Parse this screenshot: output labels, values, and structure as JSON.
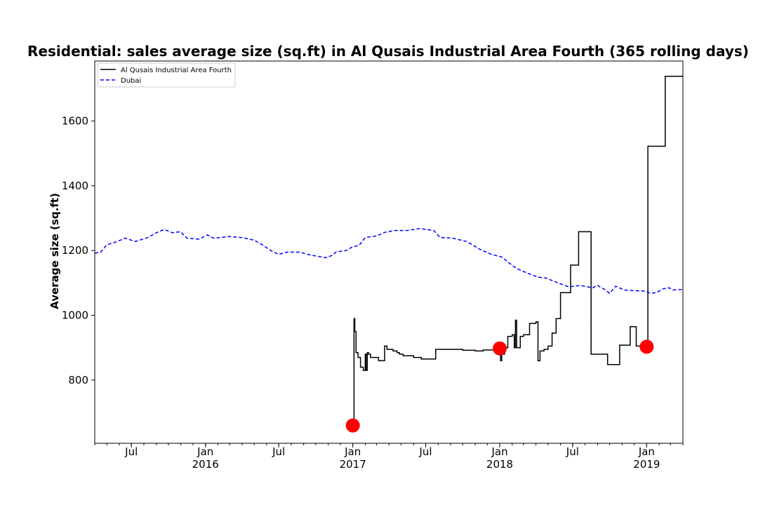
{
  "chart_data": {
    "type": "line",
    "title": "Residential: sales average size (sq.ft) in Al Qusais Industrial Area Fourth (365 rolling days)",
    "ylabel": "Average size (sq.ft)",
    "xlabel": "",
    "xlim": [
      "2015-04-01",
      "2019-04-01"
    ],
    "ylim": [
      605,
      1785
    ],
    "grid": false,
    "legend_position": "top-left",
    "x_ticks": [
      {
        "date": "2015-07-01",
        "label": "Jul",
        "year": ""
      },
      {
        "date": "2016-01-01",
        "label": "Jan",
        "year": "2016"
      },
      {
        "date": "2016-07-01",
        "label": "Jul",
        "year": ""
      },
      {
        "date": "2017-01-01",
        "label": "Jan",
        "year": "2017"
      },
      {
        "date": "2017-07-01",
        "label": "Jul",
        "year": ""
      },
      {
        "date": "2018-01-01",
        "label": "Jan",
        "year": "2018"
      },
      {
        "date": "2018-07-01",
        "label": "Jul",
        "year": ""
      },
      {
        "date": "2019-01-01",
        "label": "Jan",
        "year": "2019"
      }
    ],
    "y_ticks": [
      800,
      1000,
      1200,
      1400,
      1600
    ],
    "series": [
      {
        "name": "Al Qusais Industrial Area Fourth",
        "color": "#000000",
        "style": "solid",
        "step": true,
        "points": [
          [
            "2017-01-01",
            660
          ],
          [
            "2017-01-04",
            990
          ],
          [
            "2017-01-06",
            950
          ],
          [
            "2017-01-09",
            885
          ],
          [
            "2017-01-14",
            870
          ],
          [
            "2017-01-20",
            840
          ],
          [
            "2017-01-27",
            830
          ],
          [
            "2017-02-01",
            880
          ],
          [
            "2017-02-03",
            830
          ],
          [
            "2017-02-06",
            885
          ],
          [
            "2017-02-09",
            880
          ],
          [
            "2017-02-14",
            870
          ],
          [
            "2017-03-06",
            860
          ],
          [
            "2017-03-21",
            905
          ],
          [
            "2017-03-27",
            895
          ],
          [
            "2017-04-11",
            890
          ],
          [
            "2017-04-21",
            885
          ],
          [
            "2017-04-27",
            880
          ],
          [
            "2017-05-06",
            875
          ],
          [
            "2017-06-01",
            870
          ],
          [
            "2017-06-20",
            865
          ],
          [
            "2017-07-26",
            895
          ],
          [
            "2017-10-01",
            892
          ],
          [
            "2017-11-01",
            890
          ],
          [
            "2017-11-21",
            893
          ],
          [
            "2017-12-27",
            895
          ],
          [
            "2018-01-03",
            860
          ],
          [
            "2018-01-06",
            880
          ],
          [
            "2018-01-13",
            900
          ],
          [
            "2018-01-21",
            935
          ],
          [
            "2018-02-01",
            940
          ],
          [
            "2018-02-06",
            900
          ],
          [
            "2018-02-09",
            985
          ],
          [
            "2018-02-12",
            900
          ],
          [
            "2018-02-21",
            935
          ],
          [
            "2018-03-01",
            940
          ],
          [
            "2018-03-16",
            975
          ],
          [
            "2018-04-01",
            980
          ],
          [
            "2018-04-06",
            860
          ],
          [
            "2018-04-11",
            890
          ],
          [
            "2018-04-21",
            895
          ],
          [
            "2018-05-01",
            905
          ],
          [
            "2018-05-11",
            945
          ],
          [
            "2018-05-21",
            990
          ],
          [
            "2018-06-01",
            1070
          ],
          [
            "2018-06-26",
            1155
          ],
          [
            "2018-07-16",
            1258
          ],
          [
            "2018-08-16",
            880
          ],
          [
            "2018-09-26",
            848
          ],
          [
            "2018-10-26",
            908
          ],
          [
            "2018-11-21",
            965
          ],
          [
            "2018-12-06",
            905
          ],
          [
            "2019-01-01",
            903
          ],
          [
            "2019-01-04",
            1522
          ],
          [
            "2019-02-16",
            1738
          ],
          [
            "2019-04-01",
            1738
          ]
        ]
      },
      {
        "name": "Dubai",
        "color": "#0000ff",
        "style": "dashed",
        "step": false,
        "points": [
          [
            "2015-04-01",
            1192
          ],
          [
            "2015-04-16",
            1195
          ],
          [
            "2015-05-01",
            1218
          ],
          [
            "2015-05-21",
            1225
          ],
          [
            "2015-06-16",
            1238
          ],
          [
            "2015-07-11",
            1228
          ],
          [
            "2015-08-11",
            1240
          ],
          [
            "2015-09-01",
            1255
          ],
          [
            "2015-09-21",
            1265
          ],
          [
            "2015-10-11",
            1255
          ],
          [
            "2015-10-31",
            1258
          ],
          [
            "2015-11-16",
            1238
          ],
          [
            "2015-12-16",
            1235
          ],
          [
            "2016-01-06",
            1248
          ],
          [
            "2016-01-21",
            1238
          ],
          [
            "2016-03-01",
            1243
          ],
          [
            "2016-04-01",
            1240
          ],
          [
            "2016-05-01",
            1232
          ],
          [
            "2016-05-21",
            1218
          ],
          [
            "2016-06-11",
            1200
          ],
          [
            "2016-07-01",
            1188
          ],
          [
            "2016-07-21",
            1195
          ],
          [
            "2016-08-21",
            1195
          ],
          [
            "2016-09-11",
            1188
          ],
          [
            "2016-10-06",
            1182
          ],
          [
            "2016-10-26",
            1178
          ],
          [
            "2016-11-11",
            1185
          ],
          [
            "2016-11-21",
            1196
          ],
          [
            "2016-12-16",
            1200
          ],
          [
            "2017-01-01",
            1212
          ],
          [
            "2017-01-16",
            1215
          ],
          [
            "2017-02-01",
            1240
          ],
          [
            "2017-03-01",
            1245
          ],
          [
            "2017-03-21",
            1256
          ],
          [
            "2017-04-16",
            1262
          ],
          [
            "2017-05-16",
            1262
          ],
          [
            "2017-06-16",
            1268
          ],
          [
            "2017-07-21",
            1262
          ],
          [
            "2017-08-06",
            1240
          ],
          [
            "2017-09-06",
            1238
          ],
          [
            "2017-10-11",
            1228
          ],
          [
            "2017-11-11",
            1205
          ],
          [
            "2017-12-11",
            1188
          ],
          [
            "2018-01-06",
            1180
          ],
          [
            "2018-01-21",
            1165
          ],
          [
            "2018-02-11",
            1145
          ],
          [
            "2018-03-11",
            1130
          ],
          [
            "2018-04-06",
            1118
          ],
          [
            "2018-04-26",
            1115
          ],
          [
            "2018-05-26",
            1100
          ],
          [
            "2018-06-21",
            1088
          ],
          [
            "2018-07-21",
            1092
          ],
          [
            "2018-08-21",
            1085
          ],
          [
            "2018-08-31",
            1093
          ],
          [
            "2018-09-21",
            1078
          ],
          [
            "2018-10-01",
            1068
          ],
          [
            "2018-10-16",
            1090
          ],
          [
            "2018-11-06",
            1078
          ],
          [
            "2018-12-01",
            1076
          ],
          [
            "2018-12-26",
            1075
          ],
          [
            "2019-01-11",
            1068
          ],
          [
            "2019-01-26",
            1070
          ],
          [
            "2019-02-11",
            1082
          ],
          [
            "2019-02-26",
            1085
          ],
          [
            "2019-03-06",
            1078
          ],
          [
            "2019-04-01",
            1080
          ]
        ]
      }
    ],
    "markers": {
      "color": "#ff0000",
      "points": [
        [
          "2017-01-01",
          660
        ],
        [
          "2018-01-01",
          898
        ],
        [
          "2019-01-01",
          903
        ]
      ]
    }
  }
}
